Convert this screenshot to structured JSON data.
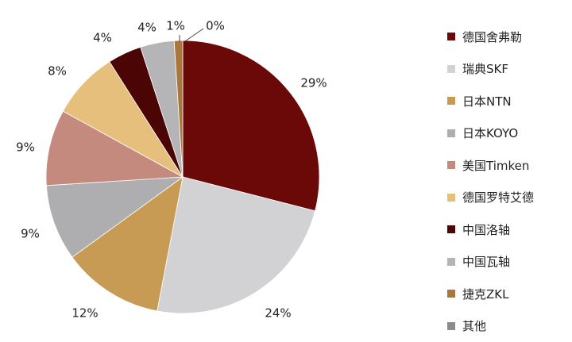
{
  "chart_data": {
    "type": "pie",
    "start_angle_deg": 0,
    "direction": "clockwise",
    "slices": [
      {
        "name": "德国舍弗勒",
        "value": 29,
        "label": "29%",
        "color": "#6b0808"
      },
      {
        "name": "瑞典SKF",
        "value": 24,
        "label": "24%",
        "color": "#d2d2d4"
      },
      {
        "name": "日本NTN",
        "value": 12,
        "label": "12%",
        "color": "#c89b54"
      },
      {
        "name": "日本KOYO",
        "value": 9,
        "label": "9%",
        "color": "#aeaeb0"
      },
      {
        "name": "美国Timken",
        "value": 9,
        "label": "9%",
        "color": "#c58a7e"
      },
      {
        "name": "德国罗特艾德",
        "value": 8,
        "label": "8%",
        "color": "#e7bf7d"
      },
      {
        "name": "中国洛轴",
        "value": 4,
        "label": "4%",
        "color": "#4c0505"
      },
      {
        "name": "中国瓦轴",
        "value": 4,
        "label": "4%",
        "color": "#b5b5b7"
      },
      {
        "name": "捷克ZKL",
        "value": 1,
        "label": "1%",
        "color": "#a8773e"
      },
      {
        "name": "其他",
        "value": 0,
        "label": "0%",
        "color": "#8c8c8c"
      }
    ],
    "legend_position": "right"
  }
}
